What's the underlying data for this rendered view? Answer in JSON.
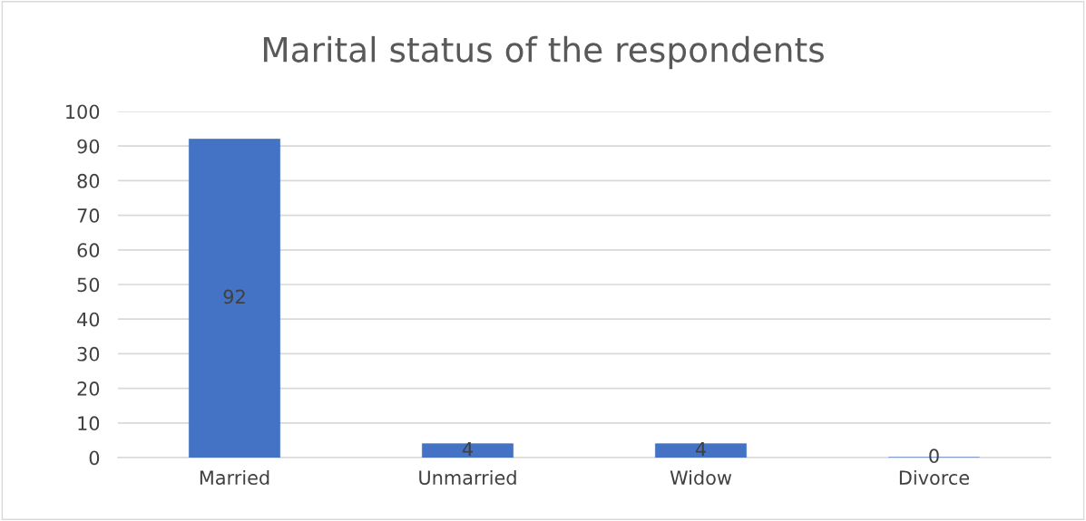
{
  "chart_data": {
    "type": "bar",
    "title": "Marital status of the respondents",
    "categories": [
      "Married",
      "Unmarried",
      "Widow",
      "Divorce"
    ],
    "values": [
      92,
      4,
      4,
      0
    ],
    "color": "#4472c4",
    "ylim": [
      0,
      100
    ],
    "yticks": [
      0,
      10,
      20,
      30,
      40,
      50,
      60,
      70,
      80,
      90,
      100
    ],
    "grid": "y",
    "data_labels": true
  }
}
